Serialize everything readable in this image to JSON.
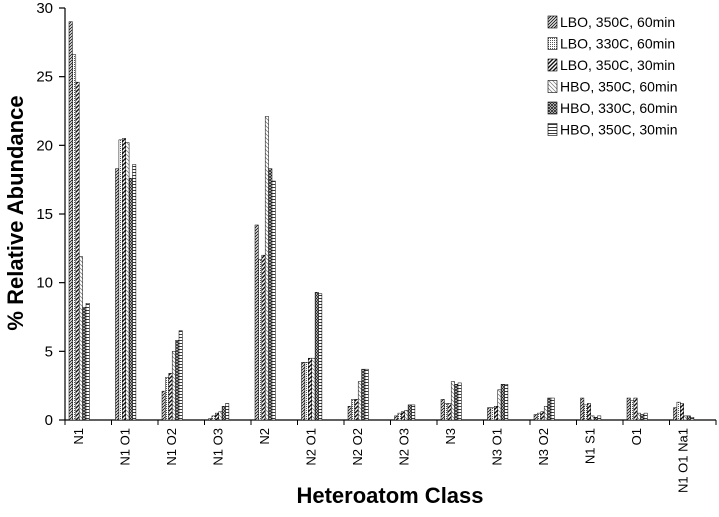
{
  "chart_data": {
    "type": "bar",
    "title": "",
    "xlabel": "Heteroatom Class",
    "ylabel": "% Relative Abundance",
    "ylim": [
      0,
      30
    ],
    "yticks": [
      "0",
      "5",
      "10",
      "15",
      "20",
      "25",
      "30"
    ],
    "grid": false,
    "legend_position": "top-right",
    "categories": [
      "N1",
      "N1 O1",
      "N1 O2",
      "N1 O3",
      "N2",
      "N2 O1",
      "N2 O2",
      "N2 O3",
      "N3",
      "N3 O1",
      "N3 O2",
      "N1 S1",
      "O1",
      "N1 O1 Na1"
    ],
    "series": [
      {
        "name": "LBO, 350C, 60min",
        "pattern": "dense-diagonal",
        "values": [
          29.0,
          18.3,
          2.1,
          0.1,
          14.2,
          4.2,
          1.0,
          0.3,
          1.5,
          0.9,
          0.4,
          1.6,
          1.6,
          0.9
        ]
      },
      {
        "name": "LBO, 330C, 60min",
        "pattern": "fine-dots",
        "values": [
          26.6,
          20.4,
          3.1,
          0.3,
          11.7,
          4.2,
          1.5,
          0.5,
          1.2,
          0.9,
          0.5,
          1.1,
          1.4,
          1.3
        ]
      },
      {
        "name": "LBO, 350C, 30min",
        "pattern": "wide-diagonal",
        "values": [
          24.6,
          20.5,
          3.4,
          0.5,
          12.0,
          4.5,
          1.5,
          0.6,
          1.2,
          1.0,
          0.6,
          1.2,
          1.6,
          1.2
        ]
      },
      {
        "name": "HBO, 350C, 60min",
        "pattern": "light-diagonal",
        "values": [
          11.9,
          20.2,
          5.0,
          0.6,
          22.1,
          4.5,
          2.8,
          0.7,
          2.8,
          2.2,
          1.0,
          0.3,
          0.5,
          0.3
        ]
      },
      {
        "name": "HBO, 330C, 60min",
        "pattern": "crosshatch",
        "values": [
          8.2,
          17.6,
          5.8,
          1.0,
          18.3,
          9.3,
          3.7,
          1.1,
          2.6,
          2.6,
          1.6,
          0.2,
          0.4,
          0.3
        ]
      },
      {
        "name": "HBO, 350C, 30min",
        "pattern": "horizontal",
        "values": [
          8.5,
          18.6,
          6.5,
          1.2,
          17.4,
          9.2,
          3.7,
          1.1,
          2.7,
          2.6,
          1.6,
          0.3,
          0.5,
          0.2
        ]
      }
    ]
  }
}
